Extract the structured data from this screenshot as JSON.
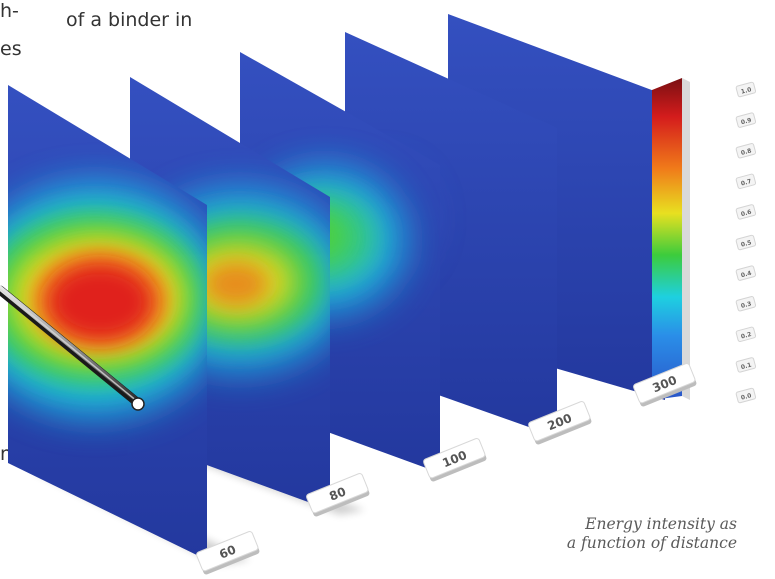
{
  "text_fragments": {
    "left_line_1": "h-",
    "left_line_2": "es",
    "left_line_3": "ng",
    "top_line": "of a binder in"
  },
  "diagram": {
    "plane_distance_labels": [
      "60",
      "80",
      "100",
      "200",
      "300"
    ],
    "intensity_scale_labels": [
      "1.0",
      "0.9",
      "0.8",
      "0.7",
      "0.6",
      "0.5",
      "0.4",
      "0.3",
      "0.2",
      "0.1",
      "0.0"
    ],
    "caption_line_1": "Energy intensity as",
    "caption_line_2": "a function of distance",
    "background_color": "#2b45b3",
    "scale_colors": [
      "#7a0f12",
      "#e02020",
      "#f07a1a",
      "#e8e020",
      "#3ccc3c",
      "#1ed0e0",
      "#2a8ee8",
      "#2a55c8"
    ],
    "probe_icon": "binder-probe-icon"
  }
}
